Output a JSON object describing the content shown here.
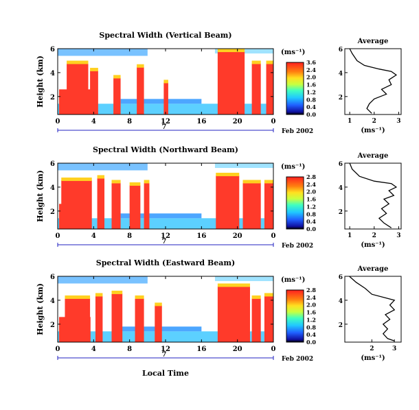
{
  "figure": {
    "date_label": "Feb 2002",
    "day_label": "7",
    "xlabel_bottom": "Local Time"
  },
  "chart_data": [
    {
      "type": "heatmap",
      "title": "Spectral Width (Vertical Beam)",
      "ylabel": "Height (km)",
      "xticks": [
        "0",
        "4",
        "8",
        "12",
        "16",
        "20",
        "0"
      ],
      "yticks": [
        "6",
        "4",
        "2"
      ],
      "colorbar_unit": "(ms⁻¹)",
      "colorbar_ticks": [
        "3.6",
        "2.4",
        "2.0",
        "1.6",
        "1.2",
        "0.8",
        "0.4",
        "0.0"
      ],
      "xlim": [
        0,
        24
      ],
      "ylim": [
        0.5,
        6
      ]
    },
    {
      "type": "line",
      "title": "Average",
      "xlabel": "(ms⁻¹)",
      "xticks": [
        "1",
        "2",
        "3"
      ],
      "yticks": [
        "6",
        "4",
        "2"
      ],
      "xlim": [
        0.8,
        3.1
      ],
      "ylim": [
        0.5,
        6
      ],
      "points": [
        [
          1.0,
          6.0
        ],
        [
          1.1,
          5.6
        ],
        [
          1.3,
          5.0
        ],
        [
          1.6,
          4.6
        ],
        [
          2.2,
          4.3
        ],
        [
          2.7,
          4.1
        ],
        [
          2.9,
          3.8
        ],
        [
          2.6,
          3.4
        ],
        [
          2.7,
          3.0
        ],
        [
          2.3,
          2.6
        ],
        [
          2.5,
          2.2
        ],
        [
          2.0,
          1.8
        ],
        [
          1.8,
          1.4
        ],
        [
          1.7,
          1.0
        ],
        [
          1.9,
          0.6
        ]
      ]
    },
    {
      "type": "heatmap",
      "title": "Spectral Width (Northward Beam)",
      "ylabel": "Height (km)",
      "xticks": [
        "0",
        "4",
        "8",
        "12",
        "16",
        "20",
        "0"
      ],
      "yticks": [
        "6",
        "4",
        "2"
      ],
      "colorbar_unit": "(ms⁻¹)",
      "colorbar_ticks": [
        "2.8",
        "2.4",
        "2.0",
        "1.6",
        "1.2",
        "0.8",
        "0.4",
        "0.0"
      ],
      "xlim": [
        0,
        24
      ],
      "ylim": [
        0.5,
        6
      ]
    },
    {
      "type": "line",
      "title": "Average",
      "xlabel": "(ms⁻¹)",
      "xticks": [
        "1",
        "2",
        "3"
      ],
      "yticks": [
        "6",
        "4",
        "2"
      ],
      "xlim": [
        0.8,
        3.1
      ],
      "ylim": [
        0.5,
        6
      ],
      "points": [
        [
          1.0,
          6.0
        ],
        [
          1.1,
          5.5
        ],
        [
          1.4,
          4.9
        ],
        [
          2.0,
          4.5
        ],
        [
          2.7,
          4.3
        ],
        [
          2.9,
          4.0
        ],
        [
          2.6,
          3.7
        ],
        [
          2.8,
          3.3
        ],
        [
          2.4,
          3.0
        ],
        [
          2.6,
          2.6
        ],
        [
          2.3,
          2.2
        ],
        [
          2.5,
          1.8
        ],
        [
          2.2,
          1.4
        ],
        [
          2.4,
          1.0
        ],
        [
          2.7,
          0.6
        ]
      ]
    },
    {
      "type": "heatmap",
      "title": "Spectral Width (Eastward Beam)",
      "ylabel": "Height (km)",
      "xticks": [
        "0",
        "4",
        "8",
        "12",
        "16",
        "20",
        "0"
      ],
      "yticks": [
        "6",
        "4",
        "2"
      ],
      "colorbar_unit": "(ms⁻¹)",
      "colorbar_ticks": [
        "2.8",
        "2.4",
        "2.0",
        "1.6",
        "1.2",
        "0.8",
        "0.4",
        "0.0"
      ],
      "xlim": [
        0,
        24
      ],
      "ylim": [
        0.5,
        6
      ]
    },
    {
      "type": "line",
      "title": "Average",
      "xlabel": "(ms⁻¹)",
      "xticks": [
        "2",
        "3"
      ],
      "yticks": [
        "6",
        "4",
        "2"
      ],
      "xlim": [
        0.8,
        3.3
      ],
      "ylim": [
        0.5,
        6
      ],
      "points": [
        [
          1.0,
          6.0
        ],
        [
          1.3,
          5.5
        ],
        [
          1.7,
          5.0
        ],
        [
          2.0,
          4.5
        ],
        [
          2.6,
          4.2
        ],
        [
          3.0,
          4.0
        ],
        [
          2.8,
          3.6
        ],
        [
          3.0,
          3.2
        ],
        [
          2.6,
          2.8
        ],
        [
          2.8,
          2.4
        ],
        [
          2.5,
          2.0
        ],
        [
          2.7,
          1.6
        ],
        [
          2.5,
          1.2
        ],
        [
          2.7,
          0.8
        ],
        [
          3.0,
          0.6
        ]
      ]
    }
  ]
}
